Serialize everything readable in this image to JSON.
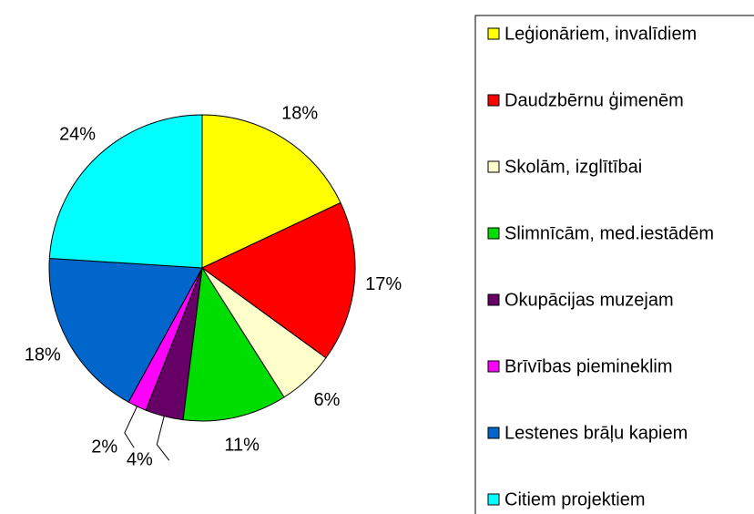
{
  "chart_data": {
    "type": "pie",
    "categories": [
      "Leģionāriem, invalīdiem",
      "Daudzbērnu ģimenēm",
      "Skolām, izglītībai",
      "Slimnīcām, med.iestādēm",
      "Okupācijas muzejam",
      "Brīvības piemineklim",
      "Lestenes brāļu kapiem",
      "Citiem projektiem"
    ],
    "values": [
      18,
      17,
      6,
      11,
      4,
      2,
      18,
      24
    ],
    "value_labels": [
      "18%",
      "17%",
      "6%",
      "11%",
      "4%",
      "2%",
      "18%",
      "24%"
    ],
    "colors": [
      "#ffff00",
      "#ff0000",
      "#ffffcc",
      "#00dd00",
      "#660066",
      "#ff00ff",
      "#0066cc",
      "#00ffff"
    ],
    "legend": "right"
  }
}
